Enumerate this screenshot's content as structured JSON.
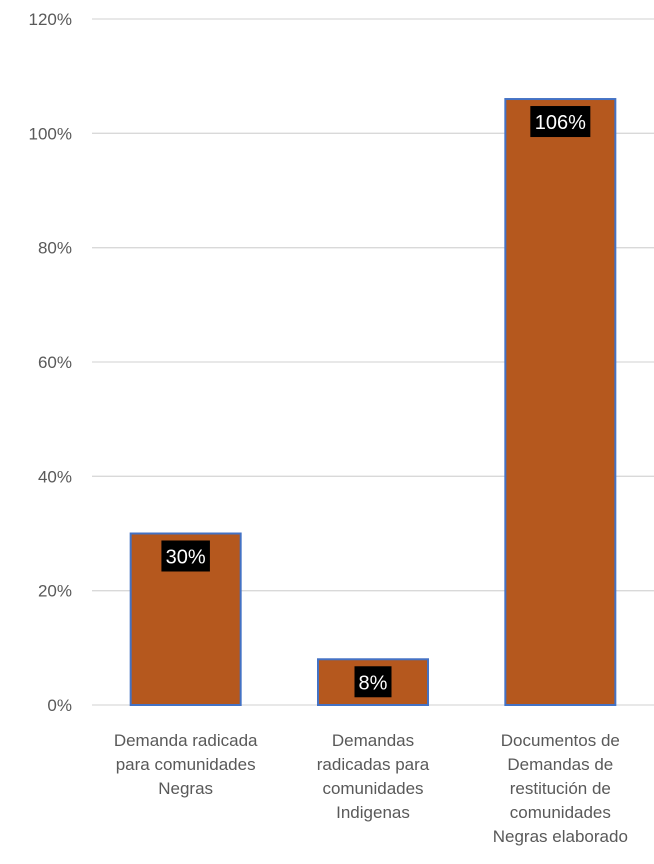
{
  "chart_data": {
    "type": "bar",
    "categories": [
      [
        "Demanda radicada",
        "para comunidades",
        "Negras"
      ],
      [
        "Demandas",
        "radicadas para",
        "comunidades",
        "Indigenas"
      ],
      [
        "Documentos de",
        "Demandas de",
        "restitución de",
        "comunidades",
        "Negras elaborado"
      ]
    ],
    "values": [
      30,
      8,
      106
    ],
    "data_labels": [
      "30%",
      "8%",
      "106%"
    ],
    "y_ticks": [
      "0%",
      "20%",
      "40%",
      "60%",
      "80%",
      "100%",
      "120%"
    ],
    "ylim": [
      0,
      120
    ],
    "grid": true,
    "legend": "none",
    "colors": {
      "bar_fill": "#B5581E",
      "bar_stroke": "#4472C4",
      "label_bg": "#000000",
      "label_text": "#FFFFFF",
      "grid": "#D9D9D9",
      "axis_text": "#595959"
    }
  }
}
